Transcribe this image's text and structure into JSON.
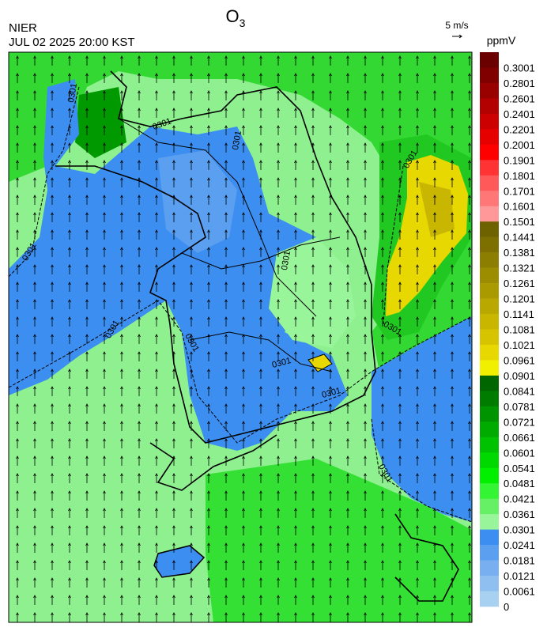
{
  "header": {
    "title": "O",
    "title_subscript": "3",
    "agency": "NIER",
    "datetime": "JUL 02 2025 20:00 KST",
    "wind_scale": "5 m/s"
  },
  "legend": {
    "unit": "ppmV",
    "labels": [
      "0.3001",
      "0.2801",
      "0.2601",
      "0.2401",
      "0.2201",
      "0.2001",
      "0.1901",
      "0.1801",
      "0.1701",
      "0.1601",
      "0.1501",
      "0.1441",
      "0.1381",
      "0.1321",
      "0.1261",
      "0.1201",
      "0.1141",
      "0.1081",
      "0.1021",
      "0.0961",
      "0.0901",
      "0.0841",
      "0.0781",
      "0.0721",
      "0.0661",
      "0.0601",
      "0.0541",
      "0.0481",
      "0.0421",
      "0.0361",
      "0.0301",
      "0.0241",
      "0.0181",
      "0.0121",
      "0.0061",
      "0"
    ],
    "colors": [
      "#6b0000",
      "#800000",
      "#990000",
      "#b30000",
      "#cc0000",
      "#e60000",
      "#ff0000",
      "#ff3333",
      "#ff5959",
      "#ff7777",
      "#ff9999",
      "#6e6200",
      "#7d7000",
      "#8c7e00",
      "#9b8c00",
      "#aa9a00",
      "#b9a800",
      "#c8b600",
      "#d7c400",
      "#e6d800",
      "#f0f000",
      "#006600",
      "#007d00",
      "#009400",
      "#00ab00",
      "#00c200",
      "#00d900",
      "#00f000",
      "#33f533",
      "#66f066",
      "#99f599",
      "#3c8ff0",
      "#5a9ff0",
      "#78aff0",
      "#8fbff0",
      "#a8d0f0"
    ]
  },
  "map": {
    "contour_labels": [
      "0301",
      "0301",
      "0301",
      "0301",
      "0301",
      "0301",
      "0301",
      "0301",
      "0301",
      "0301",
      "0301",
      "0301"
    ]
  }
}
